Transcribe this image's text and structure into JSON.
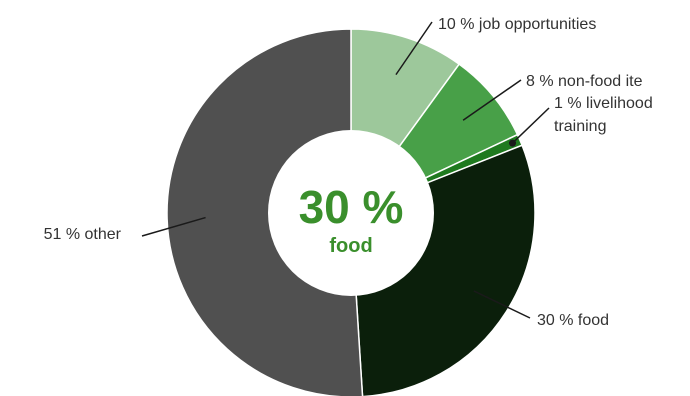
{
  "chart_data": {
    "type": "pie",
    "variant": "donut",
    "slices": [
      {
        "value": 10,
        "label": "10 % job opportunities",
        "color": "#9dc89b"
      },
      {
        "value": 8,
        "label": "8 % non-food ite",
        "color": "#48a048"
      },
      {
        "value": 1,
        "label": "1 % livelihood training",
        "label_lines": [
          "1 % livelihood",
          "training"
        ],
        "color": "#1f7a1f"
      },
      {
        "value": 30,
        "label": "30 % food",
        "color": "#0b1f0b"
      },
      {
        "value": 51,
        "label": "51 % other",
        "color": "#505050"
      }
    ],
    "center": {
      "value": "30 %",
      "label": "food",
      "color": "#3a8f2c"
    }
  }
}
